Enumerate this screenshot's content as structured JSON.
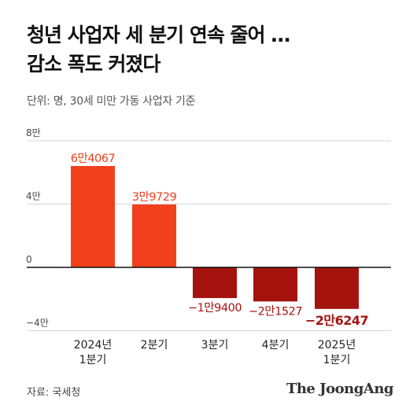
{
  "title_lines": [
    "청년 사업자 세 분기 연속 줄어 …",
    "감소 폭도 커졌다"
  ],
  "subtitle": "단위: 명, 30세 미만 가동 사업자 기준",
  "source": "자료: 국세청",
  "logo": "The JoongAng",
  "colors": {
    "positive": "#f0401c",
    "negative": "#a5130f",
    "axis": "#111111",
    "grid": "#d6d6d6"
  },
  "chart_data": {
    "type": "bar",
    "title": "청년 사업자 세 분기 연속 줄어 … 감소 폭도 커졌다",
    "ylabel": "단위: 명",
    "ylim": [
      -40000,
      80000
    ],
    "yticks": [
      {
        "value": 80000,
        "label": "8만"
      },
      {
        "value": 40000,
        "label": "4만"
      },
      {
        "value": 0,
        "label": "0"
      },
      {
        "value": -40000,
        "label": "−4만"
      }
    ],
    "categories": [
      [
        "2024년",
        "1분기"
      ],
      [
        "2분기"
      ],
      [
        "3분기"
      ],
      [
        "4분기"
      ],
      [
        "2025년",
        "1분기"
      ]
    ],
    "values": [
      64067,
      39729,
      -19400,
      -21527,
      -26247
    ],
    "value_labels": [
      "6만4067",
      "3만9729",
      "−1만9400",
      "−2만1527",
      "−2만6247"
    ],
    "grid": true
  }
}
